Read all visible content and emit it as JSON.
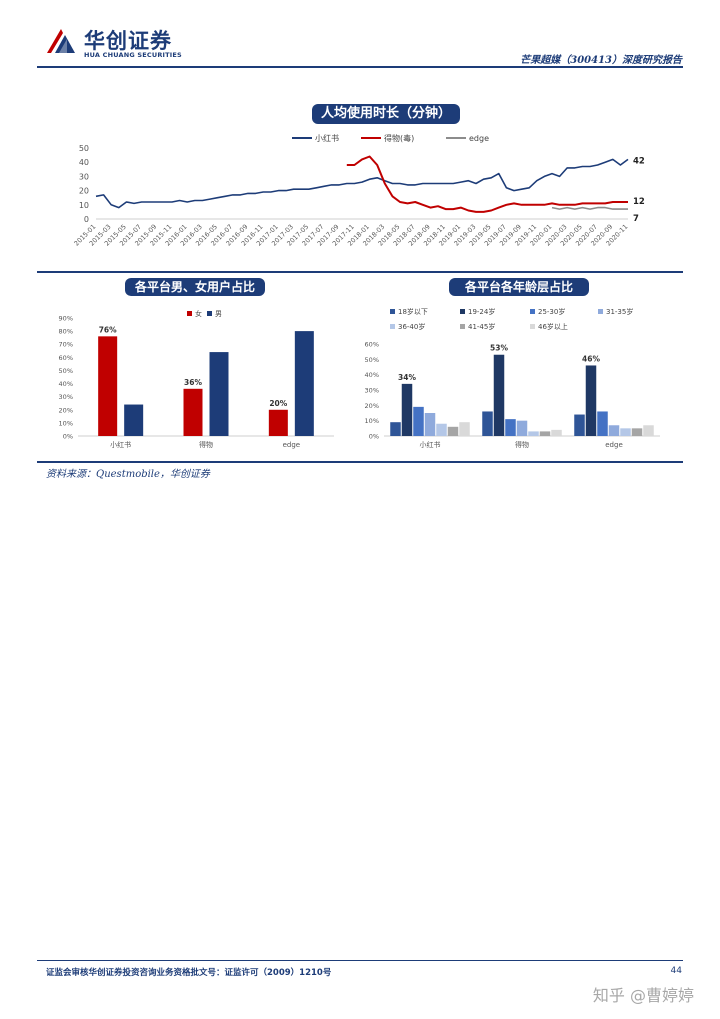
{
  "header": {
    "logo_cn": "华创证券",
    "logo_en": "HUA CHUANG SECURITIES",
    "report_title": "芒果超媒（300413）深度研究报告"
  },
  "colors": {
    "navy": "#1d3c78",
    "red": "#c00000",
    "gray": "#8c8c8c"
  },
  "chart_data": [
    {
      "type": "line",
      "title": "人均使用时长（分钟）",
      "x": [
        "2015-01",
        "2015-02",
        "2015-03",
        "2015-04",
        "2015-05",
        "2015-06",
        "2015-07",
        "2015-08",
        "2015-09",
        "2015-10",
        "2015-11",
        "2015-12",
        "2016-01",
        "2016-02",
        "2016-03",
        "2016-04",
        "2016-05",
        "2016-06",
        "2016-07",
        "2016-08",
        "2016-09",
        "2016-10",
        "2016-11",
        "2016-12",
        "2017-01",
        "2017-02",
        "2017-03",
        "2017-04",
        "2017-05",
        "2017-06",
        "2017-07",
        "2017-08",
        "2017-09",
        "2017-10",
        "2017-11",
        "2017-12",
        "2018-01",
        "2018-02",
        "2018-03",
        "2018-04",
        "2018-05",
        "2018-06",
        "2018-07",
        "2018-08",
        "2018-09",
        "2018-10",
        "2018-11",
        "2018-12",
        "2019-01",
        "2019-02",
        "2019-03",
        "2019-04",
        "2019-05",
        "2019-06",
        "2019-07",
        "2019-08",
        "2019-09",
        "2019-10",
        "2019-11",
        "2019-12",
        "2020-01",
        "2020-02",
        "2020-03",
        "2020-04",
        "2020-05",
        "2020-06",
        "2020-07",
        "2020-08",
        "2020-09",
        "2020-10",
        "2020-11"
      ],
      "x_tick_labels": [
        "2015-01",
        "2015-03",
        "2015-05",
        "2015-07",
        "2015-09",
        "2015-11",
        "2016-01",
        "2016-03",
        "2016-05",
        "2016-07",
        "2016-09",
        "2016-11",
        "2017-01",
        "2017-03",
        "2017-05",
        "2017-07",
        "2017-09",
        "2017-11",
        "2018-01",
        "2018-03",
        "2018-05",
        "2018-07",
        "2018-09",
        "2018-11",
        "2019-01",
        "2019-03",
        "2019-05",
        "2019-07",
        "2019-09",
        "2019-11",
        "2020-01",
        "2020-03",
        "2020-05",
        "2020-07",
        "2020-09",
        "2020-11"
      ],
      "y_ticks": [
        "0",
        "10",
        "20",
        "30",
        "40",
        "50"
      ],
      "ylim": [
        0,
        50
      ],
      "series": [
        {
          "name": "小红书",
          "color": "#1d3c78",
          "end_label": "42",
          "values": [
            16,
            17,
            10,
            8,
            12,
            11,
            12,
            12,
            12,
            12,
            12,
            13,
            12,
            13,
            13,
            14,
            15,
            16,
            17,
            17,
            18,
            18,
            19,
            19,
            20,
            20,
            21,
            21,
            21,
            22,
            23,
            24,
            24,
            25,
            25,
            26,
            28,
            29,
            27,
            25,
            25,
            24,
            24,
            25,
            25,
            25,
            25,
            25,
            26,
            27,
            25,
            28,
            29,
            32,
            22,
            20,
            21,
            22,
            27,
            30,
            32,
            30,
            36,
            36,
            37,
            37,
            38,
            40,
            42,
            38,
            42
          ]
        },
        {
          "name": "得物(毒)",
          "color": "#c00000",
          "end_label": "12",
          "values": [
            null,
            null,
            null,
            null,
            null,
            null,
            null,
            null,
            null,
            null,
            null,
            null,
            null,
            null,
            null,
            null,
            null,
            null,
            null,
            null,
            null,
            null,
            null,
            null,
            null,
            null,
            null,
            null,
            null,
            null,
            null,
            null,
            null,
            38,
            38,
            42,
            44,
            38,
            25,
            16,
            12,
            11,
            12,
            10,
            8,
            9,
            7,
            7,
            8,
            6,
            5,
            5,
            6,
            8,
            10,
            11,
            10,
            10,
            10,
            10,
            11,
            10,
            10,
            10,
            11,
            11,
            11,
            11,
            12,
            12,
            12
          ]
        },
        {
          "name": "edge",
          "color": "#8c8c8c",
          "end_label": "7",
          "values": [
            null,
            null,
            null,
            null,
            null,
            null,
            null,
            null,
            null,
            null,
            null,
            null,
            null,
            null,
            null,
            null,
            null,
            null,
            null,
            null,
            null,
            null,
            null,
            null,
            null,
            null,
            null,
            null,
            null,
            null,
            null,
            null,
            null,
            null,
            null,
            null,
            null,
            null,
            null,
            null,
            null,
            null,
            null,
            null,
            null,
            null,
            null,
            null,
            null,
            null,
            null,
            null,
            null,
            null,
            null,
            null,
            null,
            null,
            null,
            null,
            8,
            7,
            8,
            7,
            8,
            7,
            8,
            8,
            7,
            7,
            7
          ]
        }
      ]
    },
    {
      "type": "bar",
      "title": "各平台男、女用户占比",
      "categories": [
        "小红书",
        "得物",
        "edge"
      ],
      "y_ticks": [
        "0%",
        "10%",
        "20%",
        "30%",
        "40%",
        "50%",
        "60%",
        "70%",
        "80%",
        "90%"
      ],
      "ylim": [
        0,
        90
      ],
      "series": [
        {
          "name": "女",
          "color": "#c00000",
          "values": [
            76,
            36,
            20
          ],
          "labels": [
            "76%",
            "36%",
            "20%"
          ]
        },
        {
          "name": "男",
          "color": "#1d3c78",
          "values": [
            24,
            64,
            80
          ]
        }
      ]
    },
    {
      "type": "bar",
      "title": "各平台各年龄层占比",
      "categories": [
        "小红书",
        "得物",
        "edge"
      ],
      "y_ticks": [
        "0%",
        "10%",
        "20%",
        "30%",
        "40%",
        "50%",
        "60%"
      ],
      "ylim": [
        0,
        60
      ],
      "series": [
        {
          "name": "18岁以下",
          "color": "#2f5597",
          "values": [
            9,
            16,
            14
          ]
        },
        {
          "name": "19-24岁",
          "color": "#1f3864",
          "values": [
            34,
            53,
            46
          ],
          "labels": [
            "34%",
            "53%",
            "46%"
          ]
        },
        {
          "name": "25-30岁",
          "color": "#4472c4",
          "values": [
            19,
            11,
            16
          ]
        },
        {
          "name": "31-35岁",
          "color": "#8faadc",
          "values": [
            15,
            10,
            7
          ]
        },
        {
          "name": "36-40岁",
          "color": "#b4c7e7",
          "values": [
            8,
            3,
            5
          ]
        },
        {
          "name": "41-45岁",
          "color": "#a5a5a5",
          "values": [
            6,
            3,
            5
          ]
        },
        {
          "name": "46岁以上",
          "color": "#d9d9d9",
          "values": [
            9,
            4,
            7
          ]
        }
      ]
    }
  ],
  "source": "资料来源：Questmobile，华创证券",
  "footer": {
    "license": "证监会审核华创证券投资咨询业务资格批文号：证监许可（2009）1210号",
    "page": "44",
    "watermark": "知乎 @曹婷婷"
  }
}
